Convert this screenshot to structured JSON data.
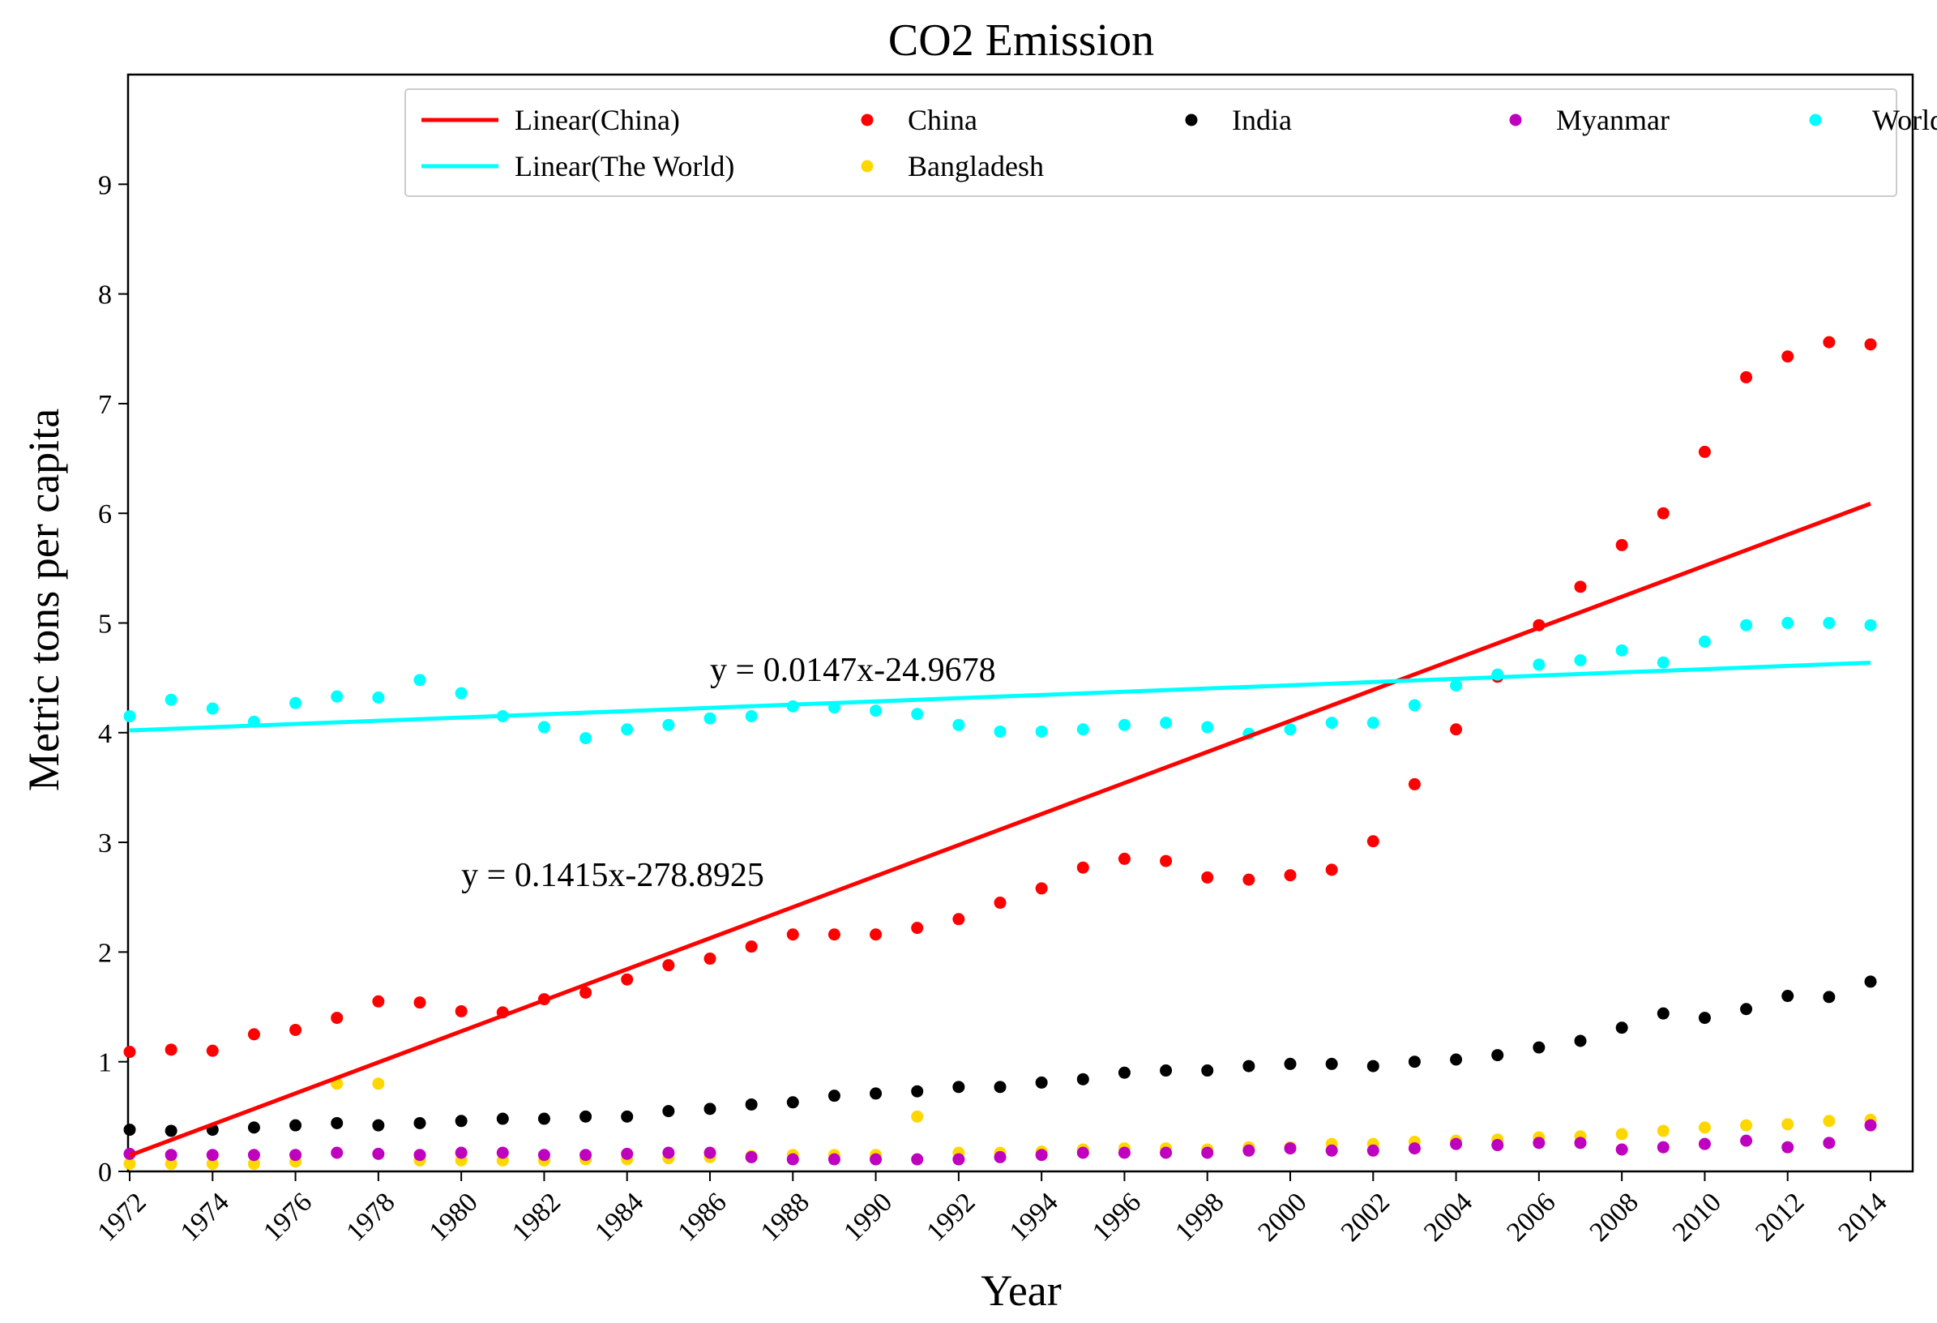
{
  "chart_data": {
    "type": "scatter",
    "title": "CO2 Emission",
    "xlabel": "Year",
    "ylabel": "Metric tons per capita",
    "xlim": [
      1972,
      2014
    ],
    "ylim": [
      0,
      10
    ],
    "yticks": [
      0,
      1,
      2,
      3,
      4,
      5,
      6,
      7,
      8,
      9
    ],
    "xticks": [
      1972,
      1974,
      1976,
      1978,
      1980,
      1982,
      1984,
      1986,
      1988,
      1990,
      1992,
      1994,
      1996,
      1998,
      2000,
      2002,
      2004,
      2006,
      2008,
      2010,
      2012,
      2014
    ],
    "legend_position": "top-right",
    "x": [
      1972,
      1973,
      1974,
      1975,
      1976,
      1977,
      1978,
      1979,
      1980,
      1981,
      1982,
      1983,
      1984,
      1985,
      1986,
      1987,
      1988,
      1989,
      1990,
      1991,
      1992,
      1993,
      1994,
      1995,
      1996,
      1997,
      1998,
      1999,
      2000,
      2001,
      2002,
      2003,
      2004,
      2005,
      2006,
      2007,
      2008,
      2009,
      2010,
      2011,
      2012,
      2013,
      2014
    ],
    "series": [
      {
        "name": "Bangladesh",
        "color": "#FFD700",
        "values": [
          0.07,
          0.07,
          0.07,
          0.07,
          0.09,
          0.8,
          0.8,
          0.1,
          0.1,
          0.1,
          0.1,
          0.11,
          0.11,
          0.12,
          0.13,
          0.14,
          0.15,
          0.15,
          0.15,
          0.5,
          0.17,
          0.17,
          0.18,
          0.2,
          0.21,
          0.21,
          0.2,
          0.22,
          0.22,
          0.25,
          0.25,
          0.27,
          0.28,
          0.29,
          0.31,
          0.32,
          0.34,
          0.37,
          0.4,
          0.42,
          0.43,
          0.46,
          0.47
        ]
      },
      {
        "name": "Myanmar",
        "color": "#BF00BF",
        "values": [
          0.16,
          0.15,
          0.15,
          0.15,
          0.15,
          0.17,
          0.16,
          0.15,
          0.17,
          0.17,
          0.15,
          0.15,
          0.16,
          0.17,
          0.17,
          0.13,
          0.11,
          0.11,
          0.11,
          0.11,
          0.11,
          0.13,
          0.15,
          0.17,
          0.17,
          0.17,
          0.17,
          0.19,
          0.21,
          0.19,
          0.19,
          0.21,
          0.25,
          0.24,
          0.26,
          0.26,
          0.2,
          0.22,
          0.25,
          0.28,
          0.22,
          0.26,
          0.42
        ]
      },
      {
        "name": "India",
        "color": "#000000",
        "values": [
          0.38,
          0.37,
          0.38,
          0.4,
          0.42,
          0.44,
          0.42,
          0.44,
          0.46,
          0.48,
          0.48,
          0.5,
          0.5,
          0.55,
          0.57,
          0.61,
          0.63,
          0.69,
          0.71,
          0.73,
          0.77,
          0.77,
          0.81,
          0.84,
          0.9,
          0.92,
          0.92,
          0.96,
          0.98,
          0.98,
          0.96,
          1.0,
          1.02,
          1.06,
          1.13,
          1.19,
          1.31,
          1.44,
          1.4,
          1.48,
          1.6,
          1.59,
          1.73
        ]
      },
      {
        "name": "China",
        "color": "#FF0000",
        "values": [
          1.09,
          1.11,
          1.1,
          1.25,
          1.29,
          1.4,
          1.55,
          1.54,
          1.46,
          1.45,
          1.57,
          1.63,
          1.75,
          1.88,
          1.94,
          2.05,
          2.16,
          2.16,
          2.16,
          2.22,
          2.3,
          2.45,
          2.58,
          2.77,
          2.85,
          2.83,
          2.68,
          2.66,
          2.7,
          2.75,
          3.01,
          3.53,
          4.03,
          4.51,
          4.98,
          5.33,
          5.71,
          6.0,
          6.56,
          7.24,
          7.43,
          7.56,
          7.54
        ]
      },
      {
        "name": "World",
        "color": "#00FFFF",
        "values": [
          4.15,
          4.3,
          4.22,
          4.1,
          4.27,
          4.33,
          4.32,
          4.48,
          4.36,
          4.15,
          4.05,
          3.95,
          4.03,
          4.07,
          4.13,
          4.15,
          4.24,
          4.23,
          4.2,
          4.17,
          4.07,
          4.01,
          4.01,
          4.03,
          4.07,
          4.09,
          4.05,
          3.99,
          4.03,
          4.09,
          4.09,
          4.25,
          4.43,
          4.53,
          4.62,
          4.66,
          4.75,
          4.64,
          4.83,
          4.98,
          5.0,
          5.0,
          4.98
        ]
      }
    ],
    "trendlines": [
      {
        "name": "Linear(China)",
        "color": "#FF0000",
        "slope": 0.1415,
        "intercept": -278.8925,
        "equation": "y = 0.1415x-278.8925",
        "label_at": [
          1980,
          2.6
        ]
      },
      {
        "name": "Linear(The World)",
        "color": "#00FFFF",
        "slope": 0.0147,
        "intercept": -24.9678,
        "equation": "y = 0.0147x-24.9678",
        "label_at": [
          1986,
          4.47
        ]
      }
    ],
    "legend": [
      {
        "label": "Linear(China)",
        "kind": "line",
        "color": "#FF0000"
      },
      {
        "label": "China",
        "kind": "dot",
        "color": "#FF0000"
      },
      {
        "label": "India",
        "kind": "dot",
        "color": "#000000"
      },
      {
        "label": "Myanmar",
        "kind": "dot",
        "color": "#BF00BF"
      },
      {
        "label": "World",
        "kind": "dot",
        "color": "#00FFFF"
      },
      {
        "label": "Linear(The World)",
        "kind": "line",
        "color": "#00FFFF"
      },
      {
        "label": "Bangladesh",
        "kind": "dot",
        "color": "#FFD700"
      }
    ]
  }
}
